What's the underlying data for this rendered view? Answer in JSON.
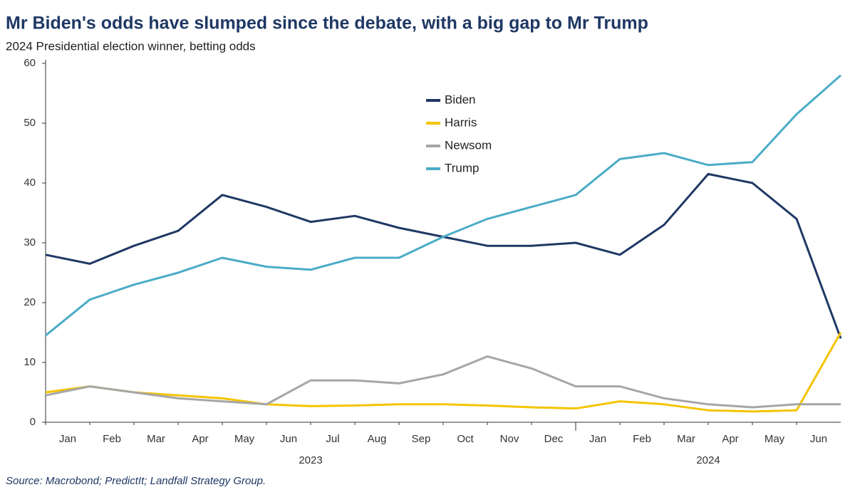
{
  "chart_data": {
    "type": "line",
    "title": "Mr Biden's odds have slumped since the debate, with a big gap to Mr Trump",
    "subtitle": "2024 Presidential election winner, betting odds",
    "source": "Source: Macrobond; PredictIt; Landfall Strategy Group.",
    "x": [
      "2023-01",
      "2023-02",
      "2023-03",
      "2023-04",
      "2023-05",
      "2023-06",
      "2023-07",
      "2023-08",
      "2023-09",
      "2023-10",
      "2023-11",
      "2023-12",
      "2024-01",
      "2024-02",
      "2024-03",
      "2024-04",
      "2024-05",
      "2024-06",
      "2024-07"
    ],
    "xlim": [
      "2023-01",
      "2024-07"
    ],
    "xticks": [
      {
        "value": "2023-01",
        "label": "Jan"
      },
      {
        "value": "2023-02",
        "label": "Feb"
      },
      {
        "value": "2023-03",
        "label": "Mar"
      },
      {
        "value": "2023-04",
        "label": "Apr"
      },
      {
        "value": "2023-05",
        "label": "May"
      },
      {
        "value": "2023-06",
        "label": "Jun"
      },
      {
        "value": "2023-07",
        "label": "Jul"
      },
      {
        "value": "2023-08",
        "label": "Aug"
      },
      {
        "value": "2023-09",
        "label": "Sep"
      },
      {
        "value": "2023-10",
        "label": "Oct"
      },
      {
        "value": "2023-11",
        "label": "Nov"
      },
      {
        "value": "2023-12",
        "label": "Dec"
      },
      {
        "value": "2024-01",
        "label": "Jan"
      },
      {
        "value": "2024-02",
        "label": "Feb"
      },
      {
        "value": "2024-03",
        "label": "Mar"
      },
      {
        "value": "2024-04",
        "label": "Apr"
      },
      {
        "value": "2024-05",
        "label": "May"
      },
      {
        "value": "2024-06",
        "label": "Jun"
      }
    ],
    "years": [
      "2023",
      "2024"
    ],
    "ylim": [
      0,
      60
    ],
    "yticks": [
      0,
      10,
      20,
      30,
      40,
      50,
      60
    ],
    "grid": false,
    "legend": "top-center",
    "series": [
      {
        "name": "Biden",
        "color": "#1f3864",
        "values": [
          28,
          26.5,
          29.5,
          32,
          38,
          36,
          33.5,
          34.5,
          32.5,
          31,
          29.5,
          29.5,
          30,
          28,
          33,
          41.5,
          40,
          34,
          14
        ]
      },
      {
        "name": "Harris",
        "color": "#f5c400",
        "values": [
          5,
          6,
          5,
          4.5,
          4,
          3,
          2.7,
          2.8,
          3,
          3,
          2.8,
          2.5,
          2.3,
          3.5,
          3,
          2,
          1.8,
          2,
          15
        ]
      },
      {
        "name": "Newsom",
        "color": "#a6a6a6",
        "values": [
          4.5,
          6,
          5,
          4,
          3.5,
          3,
          7,
          7,
          6.5,
          8,
          11,
          9,
          6,
          6,
          4,
          3,
          2.5,
          3,
          3
        ]
      },
      {
        "name": "Trump",
        "color": "#4bacc6",
        "values": [
          14.5,
          20.5,
          23,
          25,
          27.5,
          26,
          25.5,
          27.5,
          27.5,
          31,
          34,
          36,
          38,
          44,
          45,
          43,
          43.5,
          51.5,
          58
        ]
      }
    ]
  }
}
